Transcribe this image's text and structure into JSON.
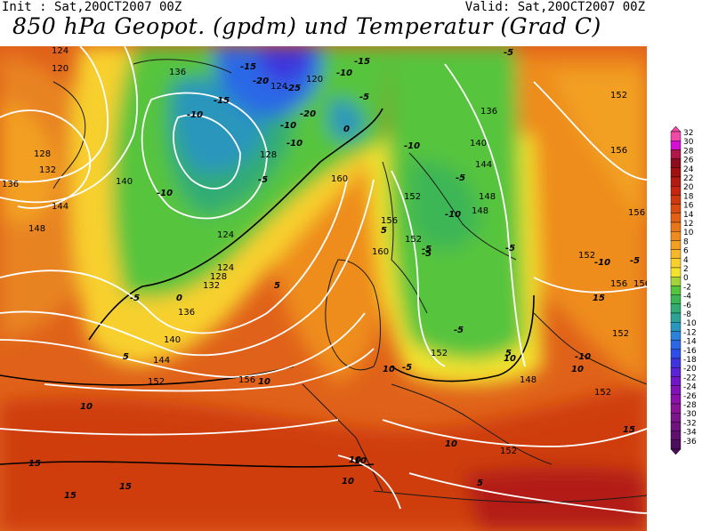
{
  "header": {
    "init": "Init : Sat,20OCT2007 00Z",
    "valid": "Valid: Sat,20OCT2007 00Z",
    "title": "850 hPa Geopot. (gpdm) und Temperatur (Grad C)"
  },
  "legend": {
    "values": [
      "32",
      "30",
      "28",
      "26",
      "24",
      "22",
      "20",
      "18",
      "16",
      "14",
      "12",
      "10",
      "8",
      "6",
      "4",
      "2",
      "0",
      "-2",
      "-4",
      "-6",
      "-8",
      "-10",
      "-12",
      "-14",
      "-16",
      "-18",
      "-20",
      "-22",
      "-24",
      "-26",
      "-28",
      "-30",
      "-32",
      "-34",
      "-36"
    ],
    "colors": [
      "#f04aa6",
      "#d40fd4",
      "#b01848",
      "#8c0c1c",
      "#a01010",
      "#b21a12",
      "#c4260f",
      "#d0390d",
      "#da4d10",
      "#e26114",
      "#e8761a",
      "#ee8c1f",
      "#f2a024",
      "#f6b82a",
      "#f8d02e",
      "#f4e32e",
      "#a4d23a",
      "#56c43c",
      "#3cb654",
      "#32ac74",
      "#2ea296",
      "#2a96bc",
      "#2c82da",
      "#2c68e6",
      "#2e4ee8",
      "#3e34de",
      "#5a24d4",
      "#7018c8",
      "#8014b8",
      "#8a12a6",
      "#8a1496",
      "#7a168a",
      "#6c147c",
      "#5e126e",
      "#4e0e5e"
    ]
  },
  "map_labels": {
    "geopotential": [
      "124",
      "120",
      "128",
      "132",
      "136",
      "140",
      "144",
      "148",
      "152",
      "156",
      "160",
      "136",
      "124",
      "120",
      "128",
      "124",
      "124",
      "128",
      "132",
      "136",
      "140",
      "144",
      "148",
      "152",
      "156",
      "160",
      "152",
      "152",
      "156",
      "148",
      "144",
      "140",
      "136",
      "152",
      "152",
      "156",
      "156",
      "156",
      "152",
      "152",
      "148",
      "152"
    ],
    "temperature": [
      "-15",
      "-20",
      "-25",
      "-15",
      "-10",
      "-10",
      "-15",
      "-10",
      "-20",
      "-10",
      "-5",
      "-10",
      "-10",
      "-5",
      "-10",
      "-5",
      "-5",
      "-5",
      "0",
      "0",
      "5",
      "5",
      "5",
      "10",
      "10",
      "10",
      "10",
      "10",
      "15",
      "15",
      "15",
      "10",
      "10",
      "5",
      "-5",
      "-10",
      "-5",
      "-5",
      "-5",
      "-10",
      "-5",
      "10",
      "10",
      "15",
      "15",
      "5",
      "-5"
    ]
  },
  "colors": {
    "contour": "#ffffff",
    "temp_isoline": "#000000",
    "coast": "#1a1a1a"
  }
}
